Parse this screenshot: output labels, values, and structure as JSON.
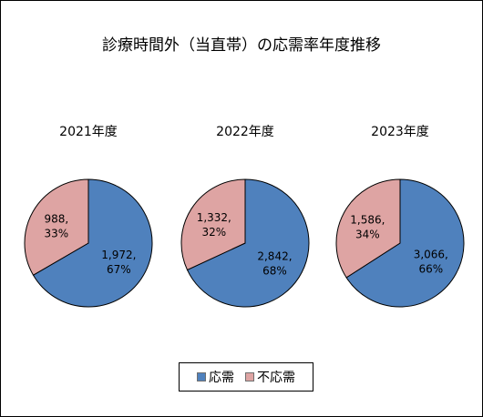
{
  "chart_data": [
    {
      "type": "pie",
      "title": "2021年度",
      "slices": [
        {
          "name": "応需",
          "value": 1972,
          "label": "1,972,",
          "percent_label": "67%"
        },
        {
          "name": "不応需",
          "value": 988,
          "label": "988,",
          "percent_label": "33%"
        }
      ]
    },
    {
      "type": "pie",
      "title": "2022年度",
      "slices": [
        {
          "name": "応需",
          "value": 2842,
          "label": "2,842,",
          "percent_label": "68%"
        },
        {
          "name": "不応需",
          "value": 1332,
          "label": "1,332,",
          "percent_label": "32%"
        }
      ]
    },
    {
      "type": "pie",
      "title": "2023年度",
      "slices": [
        {
          "name": "応需",
          "value": 3066,
          "label": "3,066,",
          "percent_label": "66%"
        },
        {
          "name": "不応需",
          "value": 1586,
          "label": "1,586,",
          "percent_label": "34%"
        }
      ]
    }
  ],
  "title": "診療時間外（当直帯）の応需率年度推移",
  "legend": {
    "placement": "bottom",
    "items": [
      {
        "label": "応需",
        "color": "#4f81bd"
      },
      {
        "label": "不応需",
        "color": "#dea4a3"
      }
    ]
  },
  "colors": {
    "accept": "#4f81bd",
    "reject": "#dea4a3"
  }
}
